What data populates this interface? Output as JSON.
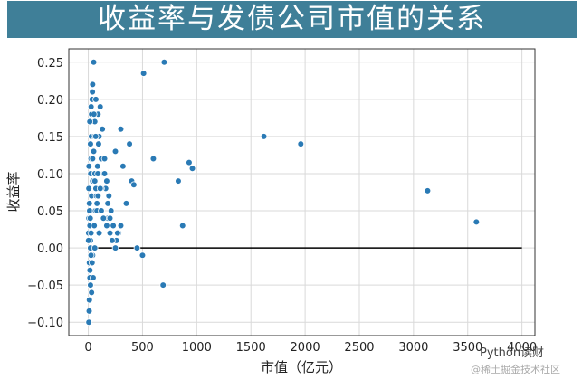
{
  "chart_data": {
    "type": "scatter",
    "title": "收益率与发债公司市值的关系",
    "xlabel": "市值（亿元）",
    "ylabel": "收益率",
    "xlim": [
      -180,
      4120
    ],
    "ylim": [
      -0.118,
      0.268
    ],
    "xticks": [
      0,
      500,
      1000,
      1500,
      2000,
      2500,
      3000,
      3500,
      4000
    ],
    "xtick_labels": [
      "0",
      "500",
      "1000",
      "1500",
      "2000",
      "2500",
      "3000",
      "3500",
      "4000"
    ],
    "yticks": [
      -0.1,
      -0.05,
      0.0,
      0.05,
      0.1,
      0.15,
      0.2,
      0.25
    ],
    "ytick_labels": [
      "−0.10",
      "−0.05",
      "0.00",
      "0.05",
      "0.10",
      "0.15",
      "0.20",
      "0.25"
    ],
    "grid": true,
    "point_color": "#2a7ab5",
    "reference_line": {
      "y": 0.0,
      "x_start": 0,
      "x_end": 4000,
      "color": "#000000"
    },
    "series": [
      {
        "x": [
          3,
          5,
          8,
          10,
          12,
          15,
          18,
          20,
          22,
          25,
          28,
          30,
          35,
          40,
          45,
          50,
          55,
          60,
          70,
          80,
          5,
          8,
          12,
          15,
          20,
          25,
          30,
          40,
          50,
          60,
          70,
          90,
          100,
          120,
          140,
          160,
          180,
          200,
          220,
          250,
          10,
          15,
          20,
          30,
          40,
          55,
          65,
          75,
          85,
          95,
          110,
          130,
          150,
          170,
          190,
          210,
          230,
          260,
          280,
          300,
          5,
          10,
          18,
          25,
          35,
          45,
          60,
          80,
          100,
          120,
          150,
          180,
          200,
          250,
          300,
          350,
          400,
          420,
          450,
          500,
          20,
          40,
          60,
          90,
          120,
          170,
          220,
          270,
          320,
          380,
          2,
          6,
          14,
          26,
          38,
          52,
          68,
          88,
          110,
          140,
          600,
          700,
          830,
          870,
          930,
          960,
          510,
          690,
          1620,
          1960,
          3130,
          3580
        ],
        "y": [
          0.02,
          -0.1,
          -0.085,
          -0.07,
          0.05,
          0.03,
          -0.05,
          0.0,
          0.1,
          0.12,
          0.15,
          0.18,
          0.2,
          0.22,
          0.25,
          0.25,
          0.15,
          0.1,
          0.08,
          0.06,
          0.04,
          0.06,
          -0.03,
          -0.04,
          0.01,
          0.02,
          0.07,
          0.09,
          0.13,
          0.17,
          0.2,
          0.18,
          0.15,
          0.12,
          0.1,
          0.08,
          0.04,
          0.02,
          0.01,
          0.0,
          -0.02,
          -0.03,
          -0.05,
          -0.06,
          -0.01,
          0.03,
          0.05,
          0.07,
          0.11,
          0.14,
          0.19,
          0.16,
          0.12,
          0.09,
          0.07,
          0.05,
          0.03,
          0.01,
          0.02,
          0.03,
          0.08,
          0.06,
          0.04,
          -0.01,
          -0.02,
          -0.04,
          0.0,
          0.05,
          0.02,
          0.08,
          0.1,
          0.06,
          0.04,
          0.13,
          0.16,
          0.06,
          0.09,
          0.085,
          0.0,
          -0.01,
          0.14,
          0.12,
          0.09,
          0.07,
          0.05,
          0.03,
          0.01,
          0.02,
          0.11,
          0.14,
          0.01,
          0.11,
          0.17,
          0.19,
          0.21,
          0.18,
          0.15,
          0.1,
          0.08,
          0.04,
          0.12,
          0.25,
          0.09,
          0.03,
          0.115,
          0.107,
          0.235,
          -0.05,
          0.15,
          0.14,
          0.077,
          0.035
        ]
      }
    ]
  },
  "watermark": {
    "line1": "Python读财",
    "line2": "@稀土掘金技术社区"
  }
}
